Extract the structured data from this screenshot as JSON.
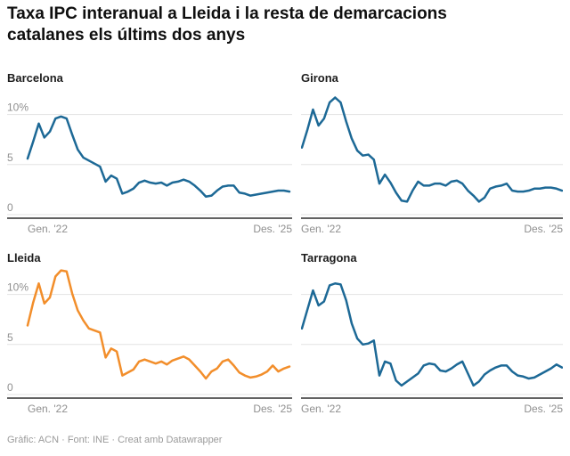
{
  "title": "Taxa IPC interanual a Lleida i la resta de demarcacions catalanes els últims dos anys",
  "footer": "Gràfic: ACN · Font: INE · Creat amb Datawrapper",
  "colors": {
    "line": "#1d6996",
    "highlight_line": "#f28e2b",
    "gridline": "#e3e3e3",
    "axis_line": "#2e2e2e",
    "tick_text": "#8f8f8f",
    "title_text": "#0f0f0f",
    "footer_text": "#9b9b9b"
  },
  "axis": {
    "x_start_label": "Gen. '22",
    "x_end_label": "Des. '25",
    "y_ticks": [
      {
        "value": 10,
        "label": "10%"
      },
      {
        "value": 5,
        "label": "5"
      },
      {
        "value": 0,
        "label": "0"
      }
    ]
  },
  "chart_data": {
    "type": "line",
    "layout": "small-multiples-2x2",
    "x_unit": "month",
    "x_range": [
      "Gen. 2022",
      "Des. 2025"
    ],
    "ylim": [
      0,
      12.5
    ],
    "gridlines": [
      0,
      5,
      10
    ],
    "legend_position": "none",
    "series": [
      {
        "name": "Barcelona",
        "color": "#1d6996",
        "values": [
          5.6,
          7.3,
          9.1,
          7.7,
          8.3,
          9.6,
          9.8,
          9.6,
          8.0,
          6.5,
          5.7,
          5.4,
          5.1,
          4.8,
          3.3,
          3.9,
          3.6,
          2.1,
          2.3,
          2.6,
          3.2,
          3.4,
          3.2,
          3.1,
          3.2,
          2.9,
          3.2,
          3.3,
          3.5,
          3.3,
          2.9,
          2.4,
          1.8,
          1.9,
          2.4,
          2.8,
          2.9,
          2.9,
          2.2,
          2.1,
          1.9,
          2.0,
          2.1,
          2.2,
          2.3,
          2.4,
          2.4,
          2.3
        ]
      },
      {
        "name": "Girona",
        "color": "#1d6996",
        "values": [
          6.7,
          8.5,
          10.5,
          8.9,
          9.6,
          11.2,
          11.7,
          11.2,
          9.3,
          7.6,
          6.4,
          5.9,
          6.0,
          5.5,
          3.1,
          4.0,
          3.2,
          2.2,
          1.4,
          1.3,
          2.4,
          3.3,
          2.9,
          2.9,
          3.1,
          3.1,
          2.9,
          3.3,
          3.4,
          3.1,
          2.4,
          1.9,
          1.3,
          1.7,
          2.6,
          2.8,
          2.9,
          3.1,
          2.4,
          2.3,
          2.3,
          2.4,
          2.6,
          2.6,
          2.7,
          2.7,
          2.6,
          2.4
        ]
      },
      {
        "name": "Lleida",
        "color": "#f28e2b",
        "values": [
          6.9,
          9.2,
          11.1,
          9.1,
          9.7,
          11.8,
          12.4,
          12.3,
          10.1,
          8.4,
          7.4,
          6.6,
          6.4,
          6.2,
          3.7,
          4.6,
          4.3,
          1.9,
          2.2,
          2.5,
          3.3,
          3.5,
          3.3,
          3.1,
          3.3,
          3.0,
          3.4,
          3.6,
          3.8,
          3.5,
          2.9,
          2.3,
          1.6,
          2.3,
          2.6,
          3.3,
          3.5,
          2.9,
          2.2,
          1.9,
          1.7,
          1.8,
          2.0,
          2.3,
          2.9,
          2.3,
          2.6,
          2.8
        ]
      },
      {
        "name": "Tarragona",
        "color": "#1d6996",
        "values": [
          6.6,
          8.5,
          10.4,
          8.9,
          9.3,
          10.9,
          11.1,
          11.0,
          9.4,
          7.1,
          5.6,
          5.0,
          5.1,
          5.4,
          1.9,
          3.3,
          3.1,
          1.4,
          0.9,
          1.3,
          1.7,
          2.1,
          2.9,
          3.1,
          3.0,
          2.4,
          2.3,
          2.6,
          3.0,
          3.3,
          2.1,
          0.9,
          1.3,
          2.0,
          2.4,
          2.7,
          2.9,
          2.9,
          2.3,
          1.9,
          1.8,
          1.6,
          1.7,
          2.0,
          2.3,
          2.6,
          3.0,
          2.7
        ]
      }
    ]
  }
}
